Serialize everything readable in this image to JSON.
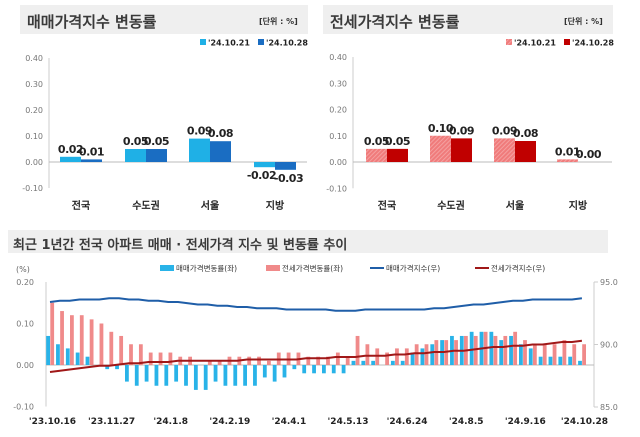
{
  "chart_data": [
    {
      "type": "bar",
      "title": "매매가격지수 변동률",
      "unit": "[단위 : %]",
      "categories": [
        "전국",
        "수도권",
        "서울",
        "지방"
      ],
      "series": [
        {
          "name": "'24.10.21",
          "values": [
            0.02,
            0.05,
            0.09,
            -0.02
          ],
          "color": "#1fb0e6"
        },
        {
          "name": "'24.10.28",
          "values": [
            0.01,
            0.05,
            0.08,
            -0.03
          ],
          "color": "#1a6dc2"
        }
      ],
      "ylim": [
        -0.1,
        0.4
      ],
      "yticks": [
        "0.40",
        "0.30",
        "0.20",
        "0.10",
        "0.00",
        "-0.10"
      ],
      "legend": "top-right"
    },
    {
      "type": "bar",
      "title": "전세가격지수 변동률",
      "unit": "[단위 : %]",
      "categories": [
        "전국",
        "수도권",
        "서울",
        "지방"
      ],
      "series": [
        {
          "name": "'24.10.21",
          "values": [
            0.05,
            0.1,
            0.09,
            0.01
          ],
          "color": "#f07b7b"
        },
        {
          "name": "'24.10.28",
          "values": [
            0.05,
            0.09,
            0.08,
            0.0
          ],
          "color": "#c00000"
        }
      ],
      "ylim": [
        -0.1,
        0.4
      ],
      "yticks": [
        "0.40",
        "0.30",
        "0.20",
        "0.10",
        "0.00",
        "-0.10"
      ],
      "legend": "top-right"
    },
    {
      "type": "bar+line",
      "title": "최근 1년간 전국 아파트 매매 · 전세가격 지수 및 변동률 추이",
      "left_unit": "(%)",
      "xticks": [
        "'23.10.16",
        "'23.11.27",
        "'24.1.8",
        "'24.2.19",
        "'24.4.1",
        "'24.5.13",
        "'24.6.24",
        "'24.8.5",
        "'24.9.16",
        "'24.10.28"
      ],
      "xtick_interval_weeks": 6,
      "ylim_left": [
        -0.1,
        0.2
      ],
      "yticks_left": [
        "0.20",
        "0.10",
        "0.00",
        "-0.10"
      ],
      "ylim_right": [
        85.0,
        95.0
      ],
      "yticks_right": [
        "95.0",
        "90.0",
        "85.0"
      ],
      "legend": "top",
      "series": [
        {
          "name": "매매가격변동률(좌)",
          "kind": "bar",
          "axis": "left",
          "color": "#29b3e8",
          "values": [
            0.07,
            0.05,
            0.04,
            0.03,
            0.02,
            0.0,
            -0.01,
            -0.01,
            -0.04,
            -0.05,
            -0.04,
            -0.05,
            -0.05,
            -0.04,
            -0.05,
            -0.06,
            -0.06,
            -0.04,
            -0.05,
            -0.05,
            -0.05,
            -0.05,
            -0.03,
            -0.04,
            -0.03,
            -0.01,
            -0.02,
            -0.02,
            -0.02,
            -0.02,
            -0.02,
            0.01,
            0.01,
            0.01,
            0.0,
            0.01,
            0.01,
            0.03,
            0.04,
            0.05,
            0.06,
            0.07,
            0.07,
            0.08,
            0.08,
            0.08,
            0.06,
            0.07,
            0.05,
            0.04,
            0.02,
            0.02,
            0.02,
            0.02,
            0.01
          ]
        },
        {
          "name": "전세가격변동률(좌)",
          "kind": "bar",
          "axis": "left",
          "color": "#f08a8a",
          "values": [
            0.15,
            0.13,
            0.12,
            0.12,
            0.11,
            0.1,
            0.08,
            0.07,
            0.05,
            0.05,
            0.03,
            0.03,
            0.03,
            0.02,
            0.02,
            0.0,
            0.01,
            0.01,
            0.02,
            0.02,
            0.02,
            0.02,
            0.01,
            0.03,
            0.03,
            0.03,
            0.02,
            0.02,
            0.02,
            0.03,
            0.02,
            0.07,
            0.05,
            0.04,
            0.03,
            0.04,
            0.04,
            0.05,
            0.05,
            0.06,
            0.06,
            0.06,
            0.07,
            0.07,
            0.08,
            0.07,
            0.07,
            0.08,
            0.06,
            0.05,
            0.05,
            0.05,
            0.06,
            0.05,
            0.05
          ]
        },
        {
          "name": "매매가격지수(우)",
          "kind": "line",
          "axis": "right",
          "color": "#1f5ea8",
          "values": [
            93.4,
            93.5,
            93.5,
            93.6,
            93.6,
            93.6,
            93.7,
            93.7,
            93.6,
            93.6,
            93.5,
            93.5,
            93.4,
            93.4,
            93.3,
            93.2,
            93.2,
            93.1,
            93.1,
            93.0,
            93.0,
            92.9,
            92.9,
            92.9,
            92.8,
            92.8,
            92.8,
            92.8,
            92.8,
            92.7,
            92.7,
            92.7,
            92.8,
            92.8,
            92.8,
            92.8,
            92.8,
            92.8,
            92.8,
            92.9,
            92.9,
            93.0,
            93.1,
            93.2,
            93.2,
            93.3,
            93.4,
            93.5,
            93.5,
            93.6,
            93.6,
            93.6,
            93.6,
            93.6,
            93.7
          ]
        },
        {
          "name": "전세가격지수(우)",
          "kind": "line",
          "axis": "right",
          "color": "#a01818",
          "values": [
            87.8,
            87.9,
            88.0,
            88.1,
            88.2,
            88.3,
            88.3,
            88.4,
            88.5,
            88.5,
            88.6,
            88.6,
            88.6,
            88.7,
            88.7,
            88.7,
            88.7,
            88.7,
            88.7,
            88.7,
            88.8,
            88.8,
            88.8,
            88.8,
            88.8,
            88.8,
            88.9,
            88.9,
            88.9,
            89.0,
            89.0,
            89.0,
            89.1,
            89.1,
            89.1,
            89.2,
            89.2,
            89.3,
            89.3,
            89.4,
            89.4,
            89.5,
            89.5,
            89.6,
            89.7,
            89.8,
            89.8,
            89.9,
            89.9,
            90.0,
            90.0,
            90.1,
            90.2,
            90.2,
            90.3
          ]
        }
      ]
    }
  ]
}
